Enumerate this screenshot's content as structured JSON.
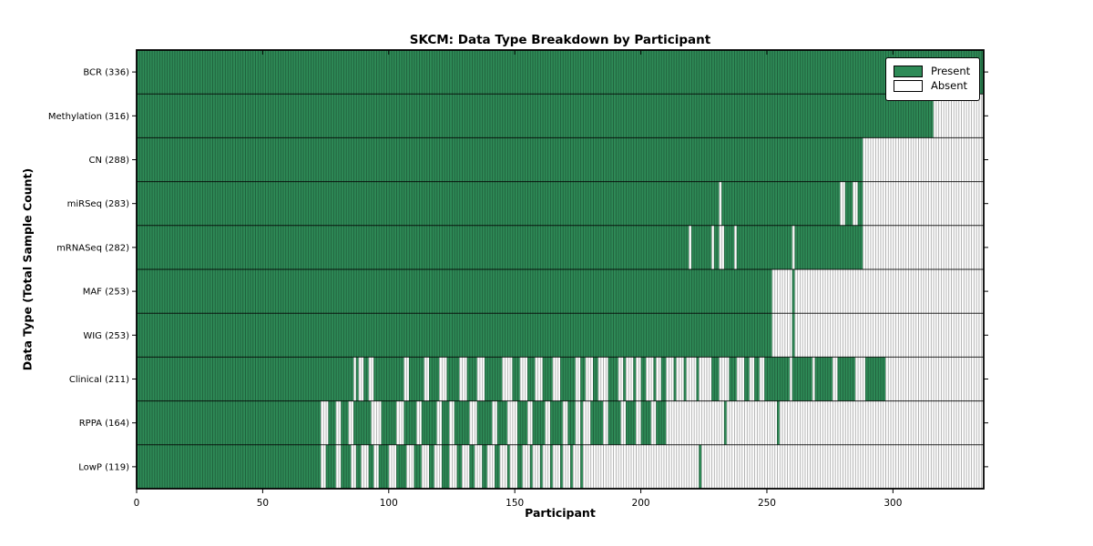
{
  "figure": {
    "title": "SKCM: Data Type Breakdown by Participant",
    "xlabel": "Participant",
    "ylabel": "Data Type (Total Sample Count)"
  },
  "legend": {
    "present_label": "Present",
    "absent_label": "Absent"
  },
  "chart_data": {
    "type": "heatmap",
    "title": "SKCM: Data Type Breakdown by Participant",
    "xlabel": "Participant",
    "ylabel": "Data Type (Total Sample Count)",
    "legend": [
      "Present",
      "Absent"
    ],
    "legend_position": "upper right",
    "grid": false,
    "xlim": [
      0,
      336
    ],
    "x_ticks": [
      0,
      50,
      100,
      150,
      200,
      250,
      300
    ],
    "n_participants": 336,
    "colors": {
      "present": "#2e8b57",
      "absent": "#ffffff",
      "edge": "#000000"
    },
    "rows": [
      {
        "label": "BCR",
        "count": 336,
        "present_runs": [
          [
            0,
            336
          ]
        ]
      },
      {
        "label": "Methylation",
        "count": 316,
        "present_runs": [
          [
            0,
            316
          ]
        ]
      },
      {
        "label": "CN",
        "count": 288,
        "present_runs": [
          [
            0,
            288
          ]
        ]
      },
      {
        "label": "miRSeq",
        "count": 283,
        "present_runs": [
          [
            0,
            231
          ],
          [
            232,
            279
          ],
          [
            281,
            284
          ],
          [
            286,
            288
          ]
        ]
      },
      {
        "label": "mRNASeq",
        "count": 282,
        "present_runs": [
          [
            0,
            219
          ],
          [
            220,
            228
          ],
          [
            229,
            231
          ],
          [
            233,
            237
          ],
          [
            238,
            260
          ],
          [
            261,
            288
          ]
        ]
      },
      {
        "label": "MAF",
        "count": 253,
        "present_runs": [
          [
            0,
            252
          ],
          [
            260,
            261
          ]
        ]
      },
      {
        "label": "WIG",
        "count": 253,
        "present_runs": [
          [
            0,
            252
          ],
          [
            260,
            261
          ]
        ]
      },
      {
        "label": "Clinical",
        "count": 211,
        "present_runs": [
          [
            0,
            86
          ],
          [
            87,
            88
          ],
          [
            90,
            92
          ],
          [
            94,
            106
          ],
          [
            108,
            114
          ],
          [
            116,
            120
          ],
          [
            123,
            128
          ],
          [
            131,
            135
          ],
          [
            138,
            145
          ],
          [
            149,
            152
          ],
          [
            155,
            158
          ],
          [
            161,
            165
          ],
          [
            168,
            174
          ],
          [
            176,
            178
          ],
          [
            181,
            183
          ],
          [
            187,
            191
          ],
          [
            193,
            194
          ],
          [
            197,
            198
          ],
          [
            200,
            202
          ],
          [
            205,
            206
          ],
          [
            208,
            210
          ],
          [
            213,
            214
          ],
          [
            217,
            218
          ],
          [
            222,
            223
          ],
          [
            228,
            231
          ],
          [
            235,
            238
          ],
          [
            241,
            243
          ],
          [
            245,
            247
          ],
          [
            249,
            259
          ],
          [
            260,
            268
          ],
          [
            269,
            276
          ],
          [
            278,
            285
          ],
          [
            289,
            297
          ]
        ]
      },
      {
        "label": "RPPA",
        "count": 164,
        "present_runs": [
          [
            0,
            73
          ],
          [
            76,
            79
          ],
          [
            81,
            84
          ],
          [
            86,
            93
          ],
          [
            97,
            103
          ],
          [
            106,
            111
          ],
          [
            113,
            119
          ],
          [
            121,
            124
          ],
          [
            126,
            132
          ],
          [
            135,
            141
          ],
          [
            143,
            147
          ],
          [
            151,
            155
          ],
          [
            157,
            162
          ],
          [
            164,
            169
          ],
          [
            171,
            174
          ],
          [
            176,
            177
          ],
          [
            180,
            185
          ],
          [
            187,
            192
          ],
          [
            194,
            198
          ],
          [
            200,
            204
          ],
          [
            206,
            210
          ],
          [
            233,
            234
          ],
          [
            254,
            255
          ]
        ]
      },
      {
        "label": "LowP",
        "count": 119,
        "present_runs": [
          [
            0,
            73
          ],
          [
            75,
            79
          ],
          [
            81,
            85
          ],
          [
            87,
            89
          ],
          [
            92,
            94
          ],
          [
            96,
            100
          ],
          [
            103,
            107
          ],
          [
            110,
            113
          ],
          [
            116,
            118
          ],
          [
            121,
            124
          ],
          [
            127,
            129
          ],
          [
            132,
            134
          ],
          [
            137,
            139
          ],
          [
            142,
            144
          ],
          [
            147,
            148
          ],
          [
            151,
            153
          ],
          [
            156,
            157
          ],
          [
            160,
            161
          ],
          [
            164,
            165
          ],
          [
            168,
            169
          ],
          [
            172,
            173
          ],
          [
            176,
            177
          ],
          [
            223,
            224
          ]
        ]
      }
    ]
  }
}
